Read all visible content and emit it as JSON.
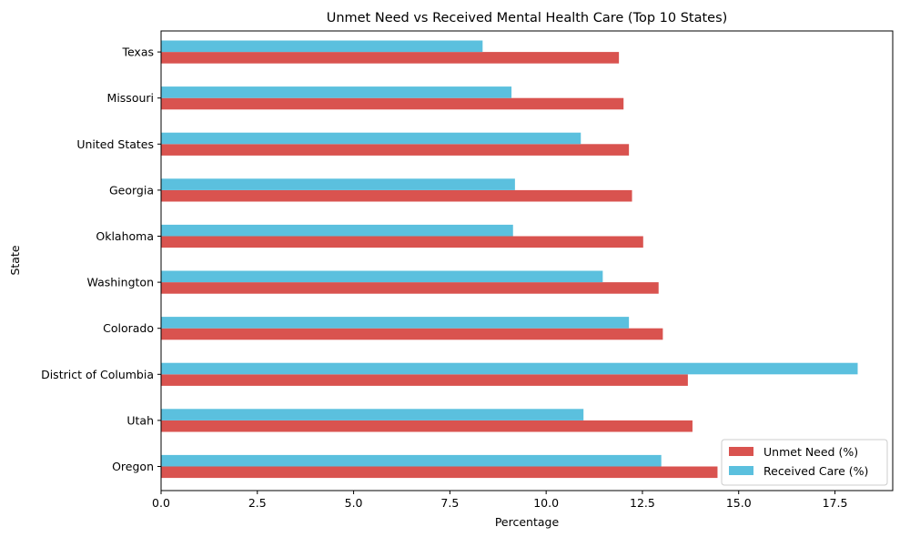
{
  "chart_data": {
    "type": "bar",
    "orientation": "horizontal",
    "title": "Unmet Need vs Received Mental Health Care (Top 10 States)",
    "xlabel": "Percentage",
    "ylabel": "State",
    "xlim": [
      0,
      19
    ],
    "xticks": [
      "0.0",
      "2.5",
      "5.0",
      "7.5",
      "10.0",
      "12.5",
      "15.0",
      "17.5"
    ],
    "categories": [
      "Oregon",
      "Utah",
      "District of Columbia",
      "Colorado",
      "Washington",
      "Oklahoma",
      "Georgia",
      "United States",
      "Missouri",
      "Texas"
    ],
    "series": [
      {
        "name": "Unmet Need (%)",
        "color": "#d9534f",
        "values": [
          14.45,
          13.8,
          13.68,
          13.03,
          12.92,
          12.52,
          12.23,
          12.15,
          12.01,
          11.89
        ]
      },
      {
        "name": "Received Care (%)",
        "color": "#5bc0de",
        "values": [
          12.99,
          10.97,
          18.09,
          12.15,
          11.47,
          9.14,
          9.19,
          10.9,
          9.1,
          8.35
        ]
      }
    ],
    "grid": false,
    "legend_position": "lower-right"
  }
}
